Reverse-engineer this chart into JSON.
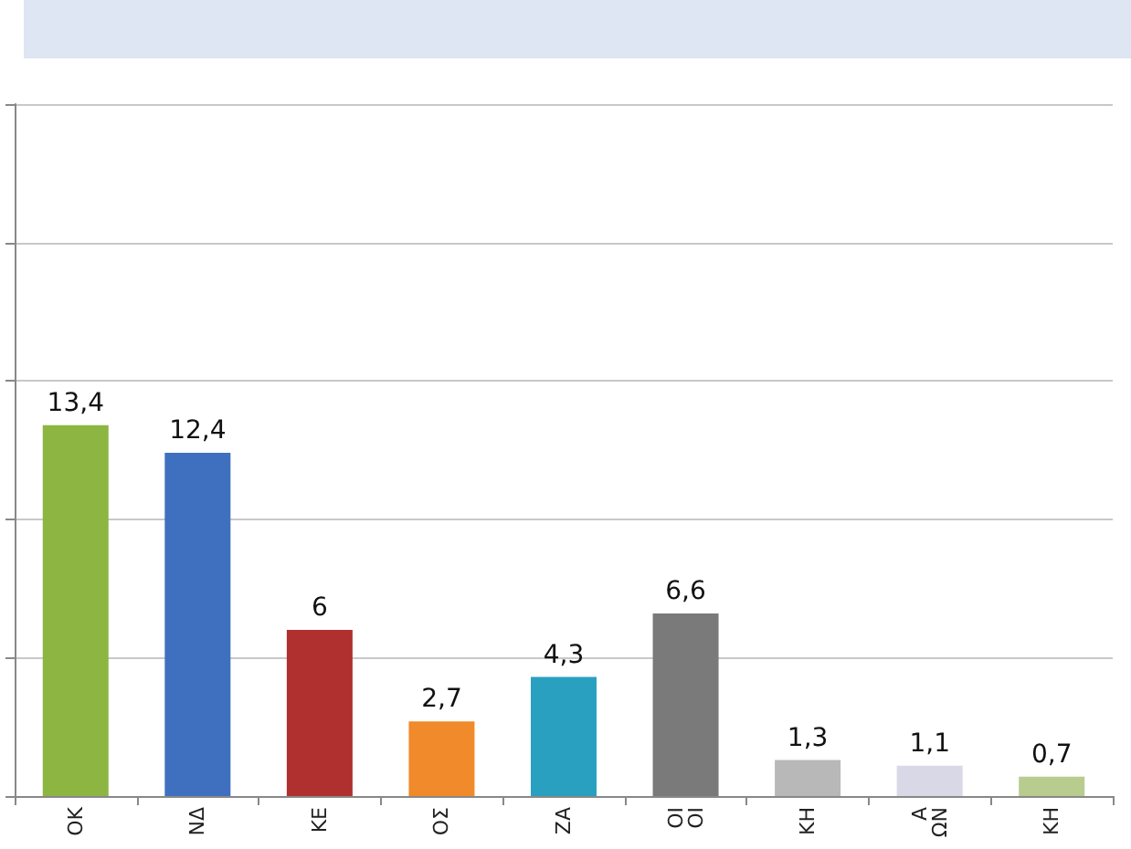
{
  "chart_data": {
    "type": "bar",
    "categories": [
      "ΟΚ",
      "ΝΔ",
      "ΚΕ",
      "ΟΣ",
      "ΖΑ",
      "ΟΙ\nΟΙ",
      "ΚΗ",
      "Α\nΩΝ",
      "ΚΗ"
    ],
    "values": [
      13.4,
      12.4,
      6,
      2.7,
      4.3,
      6.6,
      1.3,
      1.1,
      0.7
    ],
    "colors": [
      "#8db542",
      "#3f6fbf",
      "#b03030",
      "#f08a2a",
      "#2aa0c0",
      "#7a7a7a",
      "#b8b8b8",
      "#d8d8e6",
      "#b8cc90"
    ],
    "value_labels": [
      "13,4",
      "12,4",
      "6",
      "2,7",
      "4,3",
      "6,6",
      "1,3",
      "1,1",
      "0,7"
    ],
    "ylim": [
      0,
      25
    ],
    "yticks": [
      {
        "value": 0,
        "label": null
      },
      {
        "value": 5,
        "label": null
      },
      {
        "value": 10,
        "label": null
      },
      {
        "value": 15,
        "label": null
      },
      {
        "value": 20,
        "label": null
      },
      {
        "value": 25,
        "label": null
      }
    ],
    "grid": "y",
    "tick_labels": "x"
  }
}
